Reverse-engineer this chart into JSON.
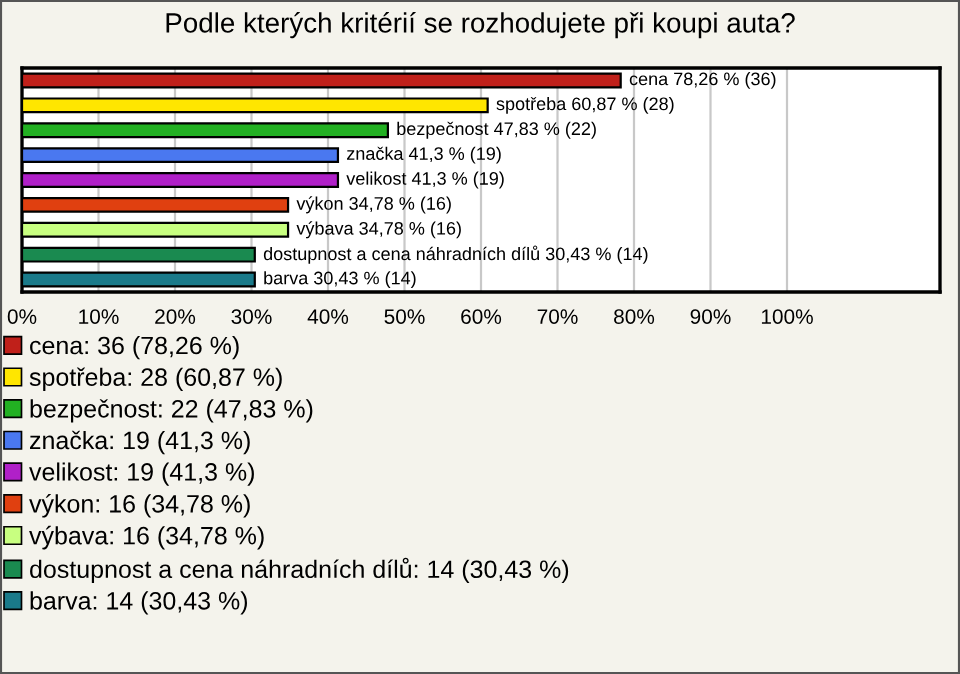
{
  "chart_data": {
    "type": "bar",
    "orientation": "horizontal",
    "title": "Podle kterých kritérií se rozhodujete při koupi auta?",
    "categories": [
      null,
      null,
      null,
      null,
      null,
      null,
      null,
      null,
      null
    ],
    "series": [
      {
        "name": "cena: 36 (78,26 %)",
        "color": "#c0201a",
        "values": [
          78.26,
          null,
          null,
          null,
          null,
          null,
          null,
          null,
          null
        ],
        "value_labels": [
          "cena 78,26 % (36)",
          null,
          null,
          null,
          null,
          null,
          null,
          null,
          null
        ]
      },
      {
        "name": "spotřeba: 28 (60,87 %)",
        "color": "#ffe600",
        "values": [
          null,
          60.87,
          null,
          null,
          null,
          null,
          null,
          null,
          null
        ],
        "value_labels": [
          null,
          "spotřeba 60,87 % (28)",
          null,
          null,
          null,
          null,
          null,
          null,
          null
        ]
      },
      {
        "name": "bezpečnost: 22 (47,83 %)",
        "color": "#22b022",
        "values": [
          null,
          null,
          47.83,
          null,
          null,
          null,
          null,
          null,
          null
        ],
        "value_labels": [
          null,
          null,
          "bezpečnost 47,83 % (22)",
          null,
          null,
          null,
          null,
          null,
          null
        ]
      },
      {
        "name": "značka: 19 (41,3 %)",
        "color": "#4a78f0",
        "values": [
          null,
          null,
          null,
          41.3,
          null,
          null,
          null,
          null,
          null
        ],
        "value_labels": [
          null,
          null,
          null,
          "značka 41,3 % (19)",
          null,
          null,
          null,
          null,
          null
        ]
      },
      {
        "name": "velikost: 19 (41,3 %)",
        "color": "#b020c8",
        "values": [
          null,
          null,
          null,
          null,
          41.3,
          null,
          null,
          null,
          null
        ],
        "value_labels": [
          null,
          null,
          null,
          null,
          "velikost 41,3 % (19)",
          null,
          null,
          null,
          null
        ]
      },
      {
        "name": "výkon: 16 (34,78 %)",
        "color": "#e04010",
        "values": [
          null,
          null,
          null,
          null,
          null,
          34.78,
          null,
          null,
          null
        ],
        "value_labels": [
          null,
          null,
          null,
          null,
          null,
          "výkon 34,78 % (16)",
          null,
          null,
          null
        ]
      },
      {
        "name": "výbava: 16 (34,78 %)",
        "color": "#c8ff80",
        "values": [
          null,
          null,
          null,
          null,
          null,
          null,
          34.78,
          null,
          null
        ],
        "value_labels": [
          null,
          null,
          null,
          null,
          null,
          null,
          "výbava 34,78 % (16)",
          null,
          null
        ]
      },
      {
        "name": "dostupnost a cena náhradních dílů: 14 (30,43 %)",
        "color": "#1a8a50",
        "values": [
          null,
          null,
          null,
          null,
          null,
          null,
          null,
          30.43,
          null
        ],
        "value_labels": [
          null,
          null,
          null,
          null,
          null,
          null,
          null,
          "dostupnost a cena náhradních dílů 30,43 % (14)",
          null
        ]
      },
      {
        "name": "barva: 14 (30,43 %)",
        "color": "#1a7a8a",
        "values": [
          null,
          null,
          null,
          null,
          null,
          null,
          null,
          null,
          30.43
        ],
        "value_labels": [
          null,
          null,
          null,
          null,
          null,
          null,
          null,
          null,
          "barva 30,43 % (14)"
        ]
      }
    ],
    "xlim": [
      0,
      120
    ],
    "xticks": [
      {
        "value": 0,
        "label": "0%"
      },
      {
        "value": 10,
        "label": "10%"
      },
      {
        "value": 20,
        "label": "20%"
      },
      {
        "value": 30,
        "label": "30%"
      },
      {
        "value": 40,
        "label": "40%"
      },
      {
        "value": 50,
        "label": "50%"
      },
      {
        "value": 60,
        "label": "60%"
      },
      {
        "value": 70,
        "label": "70%"
      },
      {
        "value": 80,
        "label": "80%"
      },
      {
        "value": 90,
        "label": "90%"
      },
      {
        "value": 100,
        "label": "100%"
      }
    ],
    "grid": "x",
    "legend": "bottom"
  }
}
